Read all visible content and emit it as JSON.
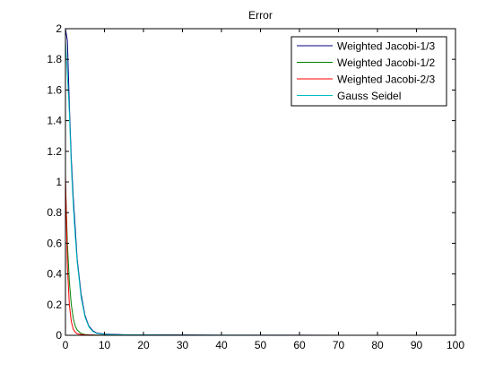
{
  "chart_data": {
    "type": "line",
    "title": "Error",
    "xlabel": "",
    "ylabel": "",
    "xlim": [
      0,
      100
    ],
    "ylim": [
      0,
      2
    ],
    "xticks": [
      0,
      10,
      20,
      30,
      40,
      50,
      60,
      70,
      80,
      90,
      100
    ],
    "yticks": [
      0,
      0.2,
      0.4,
      0.6,
      0.8,
      1,
      1.2,
      1.4,
      1.6,
      1.8,
      2
    ],
    "grid": false,
    "legend_position": "top-right",
    "series": [
      {
        "name": "Weighted Jacobi-1/3",
        "color": "#00007f",
        "x": [
          0,
          0.5,
          1,
          1.5,
          2,
          2.5,
          3,
          4,
          5,
          6,
          7,
          8,
          10,
          12,
          15,
          20,
          30,
          40,
          60,
          80,
          100
        ],
        "y": [
          2.0,
          1.92,
          1.5,
          1.15,
          0.9,
          0.7,
          0.5,
          0.27,
          0.13,
          0.06,
          0.03,
          0.015,
          0.008,
          0.006,
          0.004,
          0.003,
          0.002,
          0.001,
          0.0005,
          0.0002,
          0.0001
        ]
      },
      {
        "name": "Weighted Jacobi-1/2",
        "color": "#007f00",
        "x": [
          0,
          0.5,
          1,
          1.5,
          2,
          2.5,
          3,
          4,
          5,
          6,
          7,
          8,
          10,
          15,
          20,
          30,
          40,
          60,
          80,
          100
        ],
        "y": [
          1.0,
          0.6,
          0.35,
          0.2,
          0.11,
          0.06,
          0.035,
          0.012,
          0.005,
          0.003,
          0.002,
          0.001,
          0.0008,
          0.0005,
          0.0003,
          0.0002,
          0.0001,
          0.0001,
          0.0001,
          0.0001
        ]
      },
      {
        "name": "Weighted Jacobi-2/3",
        "color": "#ff0000",
        "x": [
          0,
          0.5,
          1,
          1.5,
          2,
          2.5,
          3,
          4,
          5,
          6,
          8,
          10,
          15,
          20,
          30,
          40,
          60,
          80,
          100
        ],
        "y": [
          1.05,
          0.45,
          0.2,
          0.09,
          0.04,
          0.02,
          0.01,
          0.005,
          0.003,
          0.002,
          0.001,
          0.0008,
          0.0005,
          0.0003,
          0.0002,
          0.0001,
          0.0001,
          0.0001,
          0.0001
        ]
      },
      {
        "name": "Gauss Seidel",
        "color": "#00bfbf",
        "x": [
          0,
          0.5,
          1,
          1.5,
          2,
          2.5,
          3,
          4,
          5,
          6,
          7,
          8,
          10,
          12,
          15,
          20,
          30,
          40,
          60,
          80,
          100
        ],
        "y": [
          1.92,
          1.7,
          1.45,
          1.1,
          0.85,
          0.65,
          0.48,
          0.25,
          0.12,
          0.055,
          0.025,
          0.012,
          0.006,
          0.004,
          0.003,
          0.002,
          0.001,
          0.0005,
          0.0002,
          0.0001,
          0.0001
        ]
      }
    ]
  }
}
